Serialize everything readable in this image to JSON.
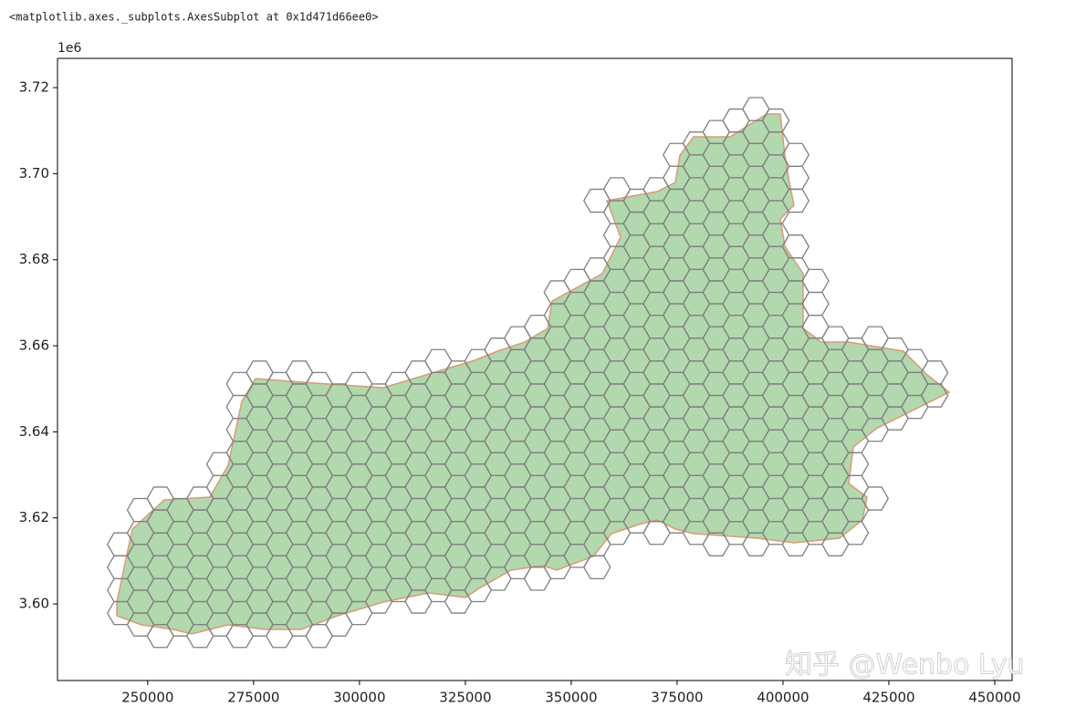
{
  "output_text": "<matplotlib.axes._subplots.AxesSubplot at 0x1d471d66ee0>",
  "watermark": "知乎 @Wenbo Lyu",
  "chart_data": {
    "type": "map",
    "offset_label": "1e6",
    "xlim": [
      228700,
      454100
    ],
    "ylim": [
      3582200,
      3726800
    ],
    "xticks": [
      250000,
      275000,
      300000,
      325000,
      350000,
      375000,
      400000,
      425000,
      450000
    ],
    "yticks": [
      {
        "value": 3600000,
        "label": "3.60"
      },
      {
        "value": 3620000,
        "label": "3.62"
      },
      {
        "value": 3640000,
        "label": "3.64"
      },
      {
        "value": 3660000,
        "label": "3.66"
      },
      {
        "value": 3680000,
        "label": "3.68"
      },
      {
        "value": 3700000,
        "label": "3.70"
      },
      {
        "value": 3720000,
        "label": "3.72"
      }
    ],
    "fill_color": "#b2d8ad",
    "edge_color": "#d99a78",
    "hex_color": "#808080"
  }
}
